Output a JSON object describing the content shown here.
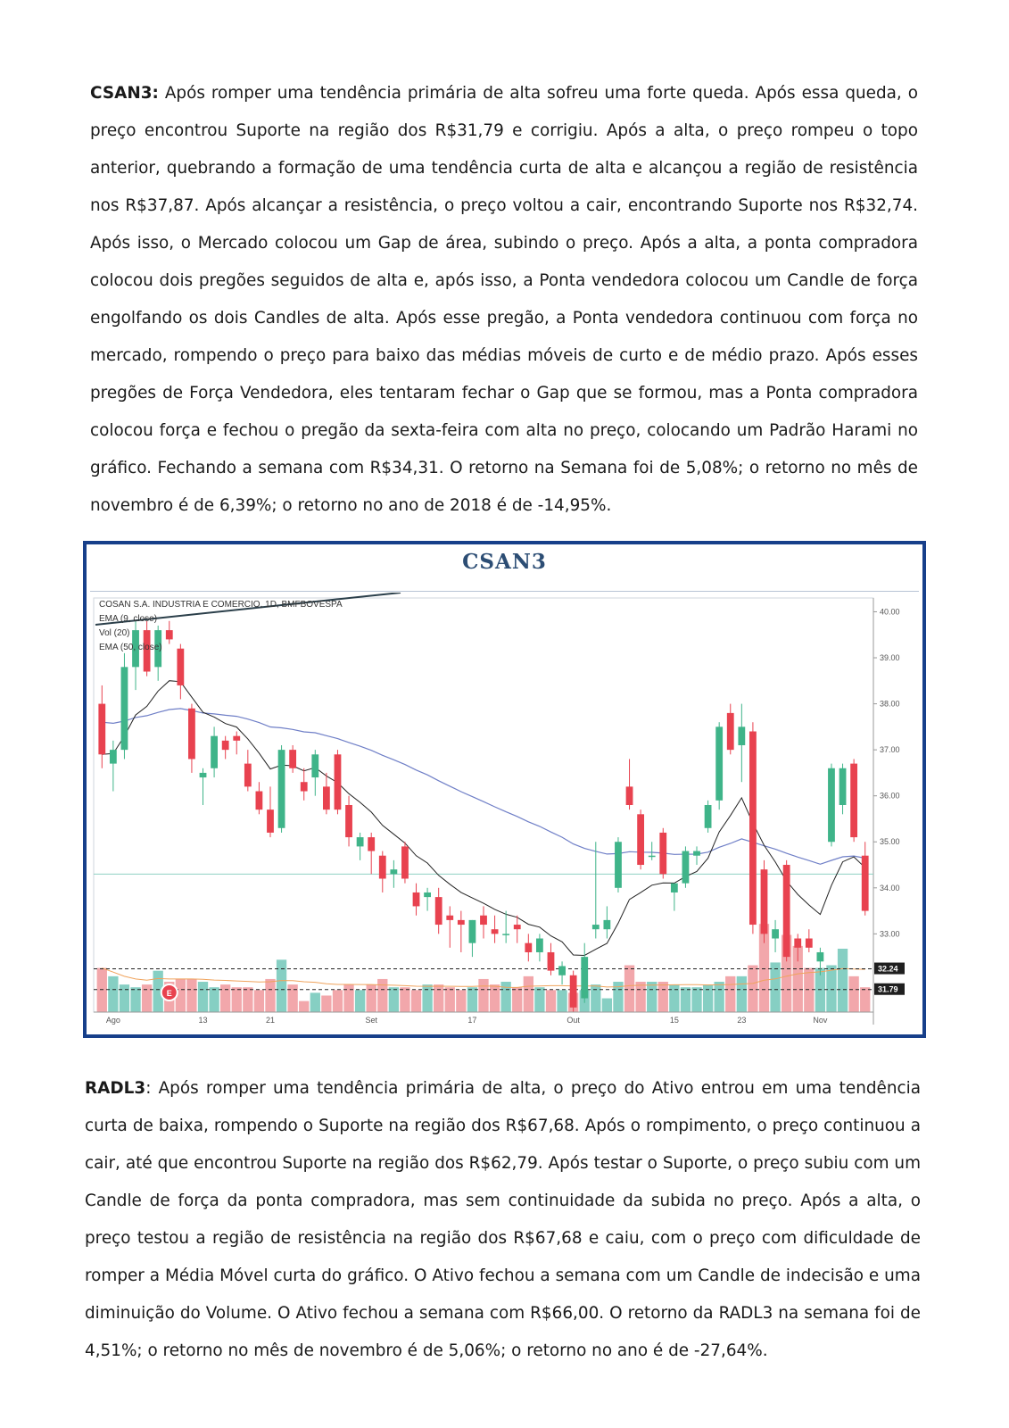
{
  "paragraph_1": {
    "ticker": "CSAN3:",
    "text": " Após romper uma tendência primária de alta sofreu uma forte queda. Após essa queda, o preço encontrou Suporte na região dos R$31,79 e corrigiu. Após a alta, o preço rompeu o topo anterior, quebrando a formação de uma tendência curta de alta e alcançou a região de resistência nos R$37,87. Após alcançar a resistência, o preço voltou a cair, encontrando Suporte nos R$32,74. Após isso, o Mercado colocou um Gap de área, subindo o preço. Após a alta, a ponta compradora colocou dois pregões seguidos de alta e, após isso, a Ponta vendedora colocou um Candle de força engolfando os dois Candles de alta. Após esse pregão, a Ponta vendedora continuou com força no mercado, rompendo o preço para baixo das médias móveis de curto e de médio prazo. Após esses pregões de Força Vendedora, eles tentaram fechar o Gap que se formou, mas a Ponta compradora colocou força e fechou o pregão da sexta-feira com alta no preço, colocando um Padrão Harami no gráfico. Fechando a semana com R$34,31. O retorno na Semana foi de 5,08%; o retorno no mês de novembro é de 6,39%; o retorno no ano de 2018 é de -14,95%."
  },
  "paragraph_2": {
    "ticker": "RADL3",
    "text": ": Após romper uma tendência primária de alta, o preço do Ativo entrou em uma tendência curta de baixa, rompendo o Suporte na região dos R$67,68. Após o rompimento, o preço continuou a cair, até que encontrou Suporte na região dos R$62,79. Após testar o Suporte, o preço subiu com um Candle de força da ponta compradora, mas sem continuidade da subida no preço. Após a alta, o preço testou a região de resistência na região dos R$67,68 e caiu, com o preço com dificuldade de romper a Média Móvel curta do gráfico. O Ativo fechou a semana com um Candle de indecisão e uma diminuição do Volume. O Ativo fechou a semana com R$66,00. O retorno da RADL3 na semana foi de 4,51%; o retorno no mês de novembro é de 5,06%; o retorno no ano é de -27,64%."
  },
  "chart_title": "CSAN3",
  "chart_data": {
    "type": "candlestick",
    "legend": [
      "COSAN S.A. INDUSTRIA E COMERCIO, 1D, BMFBOVESPA",
      "EMA (9, close)",
      "Vol (20)",
      "EMA (50, close)"
    ],
    "ylim": [
      31.3,
      40.3
    ],
    "y_ticks": [
      "40.00",
      "39.00",
      "38.00",
      "37.00",
      "36.00",
      "35.00",
      "34.00",
      "33.00"
    ],
    "price_tags": [
      "32.24",
      "31.79"
    ],
    "x_tick_labels": [
      {
        "label": "Ago",
        "index": 1
      },
      {
        "label": "13",
        "index": 9
      },
      {
        "label": "21",
        "index": 15
      },
      {
        "label": "Set",
        "index": 24
      },
      {
        "label": "17",
        "index": 33
      },
      {
        "label": "Out",
        "index": 42
      },
      {
        "label": "15",
        "index": 51
      },
      {
        "label": "23",
        "index": 57
      },
      {
        "label": "Nov",
        "index": 64
      }
    ],
    "event_marker": {
      "label": "E",
      "index": 6
    },
    "support_levels": [
      32.24,
      31.79,
      34.3
    ],
    "colors": {
      "up": "#3fb489",
      "down": "#e8424f",
      "vol_up": "#86cfc3",
      "vol_down": "#f2a7ab",
      "ema9": "#222222",
      "ema50": "#6f7fc7"
    },
    "candles": [
      [
        38.0,
        38.4,
        36.6,
        36.9
      ],
      [
        36.7,
        37.2,
        36.1,
        37.0
      ],
      [
        37.0,
        39.1,
        36.8,
        38.8
      ],
      [
        38.8,
        39.8,
        38.3,
        39.6
      ],
      [
        39.6,
        39.8,
        38.6,
        38.7
      ],
      [
        38.8,
        39.7,
        38.5,
        39.6
      ],
      [
        39.6,
        39.8,
        39.3,
        39.4
      ],
      [
        39.2,
        39.3,
        38.1,
        38.4
      ],
      [
        37.9,
        38.0,
        36.5,
        36.8
      ],
      [
        36.4,
        36.6,
        35.8,
        36.5
      ],
      [
        36.6,
        37.5,
        36.4,
        37.3
      ],
      [
        37.2,
        37.3,
        36.8,
        37.0
      ],
      [
        37.3,
        37.4,
        36.9,
        37.2
      ],
      [
        36.7,
        37.0,
        36.1,
        36.2
      ],
      [
        36.1,
        36.3,
        35.6,
        35.7
      ],
      [
        35.7,
        36.2,
        35.1,
        35.2
      ],
      [
        35.3,
        37.1,
        35.2,
        37.0
      ],
      [
        37.0,
        37.1,
        36.5,
        36.6
      ],
      [
        36.3,
        36.6,
        35.9,
        36.1
      ],
      [
        36.4,
        37.0,
        36.0,
        36.9
      ],
      [
        36.2,
        36.5,
        35.6,
        35.7
      ],
      [
        36.9,
        37.0,
        35.6,
        35.7
      ],
      [
        35.8,
        36.0,
        34.9,
        35.1
      ],
      [
        34.9,
        35.2,
        34.6,
        35.1
      ],
      [
        35.1,
        35.2,
        34.3,
        34.8
      ],
      [
        34.7,
        34.8,
        33.9,
        34.2
      ],
      [
        34.3,
        34.6,
        34.0,
        34.4
      ],
      [
        34.9,
        35.0,
        34.1,
        34.2
      ],
      [
        33.9,
        34.1,
        33.4,
        33.6
      ],
      [
        33.8,
        34.0,
        33.5,
        33.9
      ],
      [
        33.8,
        34.0,
        33.0,
        33.2
      ],
      [
        33.4,
        33.6,
        32.7,
        33.3
      ],
      [
        33.3,
        33.5,
        32.6,
        33.2
      ],
      [
        32.8,
        33.3,
        32.5,
        33.3
      ],
      [
        33.4,
        33.6,
        32.9,
        33.2
      ],
      [
        33.1,
        33.4,
        32.8,
        33.0
      ],
      [
        33.0,
        33.5,
        32.8,
        33.0
      ],
      [
        33.2,
        33.4,
        32.8,
        33.1
      ],
      [
        32.8,
        33.0,
        32.4,
        32.6
      ],
      [
        32.6,
        33.0,
        32.4,
        32.9
      ],
      [
        32.6,
        32.8,
        32.1,
        32.2
      ],
      [
        32.1,
        32.4,
        31.9,
        32.3
      ],
      [
        32.1,
        32.2,
        31.3,
        31.4
      ],
      [
        31.6,
        32.8,
        31.5,
        32.5
      ],
      [
        33.1,
        35.0,
        32.9,
        33.2
      ],
      [
        33.1,
        33.6,
        32.9,
        33.3
      ],
      [
        34.0,
        35.1,
        33.9,
        35.0
      ],
      [
        36.2,
        36.8,
        35.7,
        35.8
      ],
      [
        35.6,
        35.7,
        34.4,
        34.5
      ],
      [
        34.7,
        35.0,
        34.6,
        34.7
      ],
      [
        35.2,
        35.3,
        34.2,
        34.3
      ],
      [
        33.9,
        34.1,
        33.5,
        34.1
      ],
      [
        34.1,
        34.9,
        34.0,
        34.8
      ],
      [
        34.7,
        34.9,
        34.5,
        34.8
      ],
      [
        35.3,
        35.9,
        35.2,
        35.8
      ],
      [
        35.9,
        37.6,
        35.7,
        37.5
      ],
      [
        37.8,
        38.0,
        36.9,
        37.0
      ],
      [
        37.1,
        38.0,
        36.3,
        37.5
      ],
      [
        37.4,
        37.6,
        33.0,
        33.2
      ],
      [
        34.4,
        34.6,
        32.8,
        33.0
      ],
      [
        32.9,
        33.3,
        32.6,
        33.1
      ],
      [
        34.5,
        34.6,
        32.4,
        32.5
      ],
      [
        32.9,
        33.0,
        32.4,
        32.7
      ],
      [
        32.9,
        33.1,
        32.6,
        32.7
      ],
      [
        32.4,
        32.7,
        32.1,
        32.6
      ],
      [
        35.0,
        36.7,
        34.9,
        36.6
      ],
      [
        35.8,
        36.7,
        35.6,
        36.6
      ],
      [
        36.7,
        36.8,
        35.0,
        35.1
      ],
      [
        34.7,
        35.0,
        33.4,
        33.5
      ]
    ],
    "volumes": [
      1.6,
      1.3,
      1.0,
      0.9,
      1.0,
      1.5,
      1.1,
      1.2,
      1.2,
      1.1,
      0.9,
      1.0,
      0.9,
      0.9,
      0.8,
      1.2,
      1.9,
      1.0,
      0.4,
      0.7,
      0.6,
      0.8,
      1.0,
      0.8,
      1.0,
      1.2,
      0.9,
      0.9,
      0.8,
      1.0,
      1.0,
      0.9,
      0.8,
      0.9,
      1.2,
      1.0,
      1.1,
      0.9,
      1.3,
      0.9,
      0.8,
      0.8,
      0.7,
      0.8,
      1.0,
      0.5,
      1.1,
      1.7,
      1.1,
      1.1,
      1.1,
      1.0,
      0.9,
      0.9,
      1.0,
      1.1,
      1.3,
      1.3,
      1.7,
      3.2,
      1.8,
      2.8,
      2.4,
      1.6,
      1.6,
      1.7,
      2.3,
      1.3,
      0.9
    ]
  }
}
